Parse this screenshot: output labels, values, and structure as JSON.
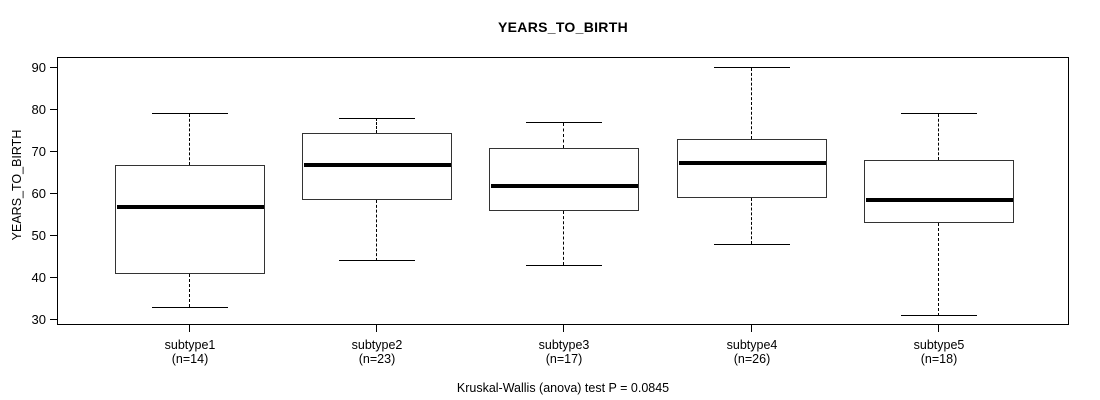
{
  "chart_data": {
    "type": "boxplot",
    "title": "YEARS_TO_BIRTH",
    "xlabel": "",
    "ylabel": "YEARS_TO_BIRTH",
    "ylim": [
      28.8,
      92.6
    ],
    "y_ticks": [
      30,
      40,
      50,
      60,
      70,
      80,
      90
    ],
    "grid": false,
    "legend": "none",
    "categories": [
      "subtype1",
      "subtype2",
      "subtype3",
      "subtype4",
      "subtype5"
    ],
    "boxes": [
      {
        "label": "subtype1",
        "sublabel": "(n=14)",
        "n": 14,
        "whisker_low": 33,
        "q1": 41,
        "median": 57,
        "q3": 67,
        "whisker_high": 79
      },
      {
        "label": "subtype2",
        "sublabel": "(n=23)",
        "n": 23,
        "whisker_low": 44,
        "q1": 58.5,
        "median": 67,
        "q3": 74.5,
        "whisker_high": 78
      },
      {
        "label": "subtype3",
        "sublabel": "(n=17)",
        "n": 17,
        "whisker_low": 43,
        "q1": 56,
        "median": 62,
        "q3": 71,
        "whisker_high": 77
      },
      {
        "label": "subtype4",
        "sublabel": "(n=26)",
        "n": 26,
        "whisker_low": 48,
        "q1": 59,
        "median": 67.5,
        "q3": 73,
        "whisker_high": 90
      },
      {
        "label": "subtype5",
        "sublabel": "(n=18)",
        "n": 18,
        "whisker_low": 31,
        "q1": 53,
        "median": 58.5,
        "q3": 68,
        "whisker_high": 79
      }
    ],
    "footnote": "Kruskal-Wallis (anova) test P = 0.0845",
    "colors": {
      "line": "#000000",
      "box_border": "#333333",
      "box_fill": "#ffffff",
      "background": "#ffffff"
    }
  }
}
